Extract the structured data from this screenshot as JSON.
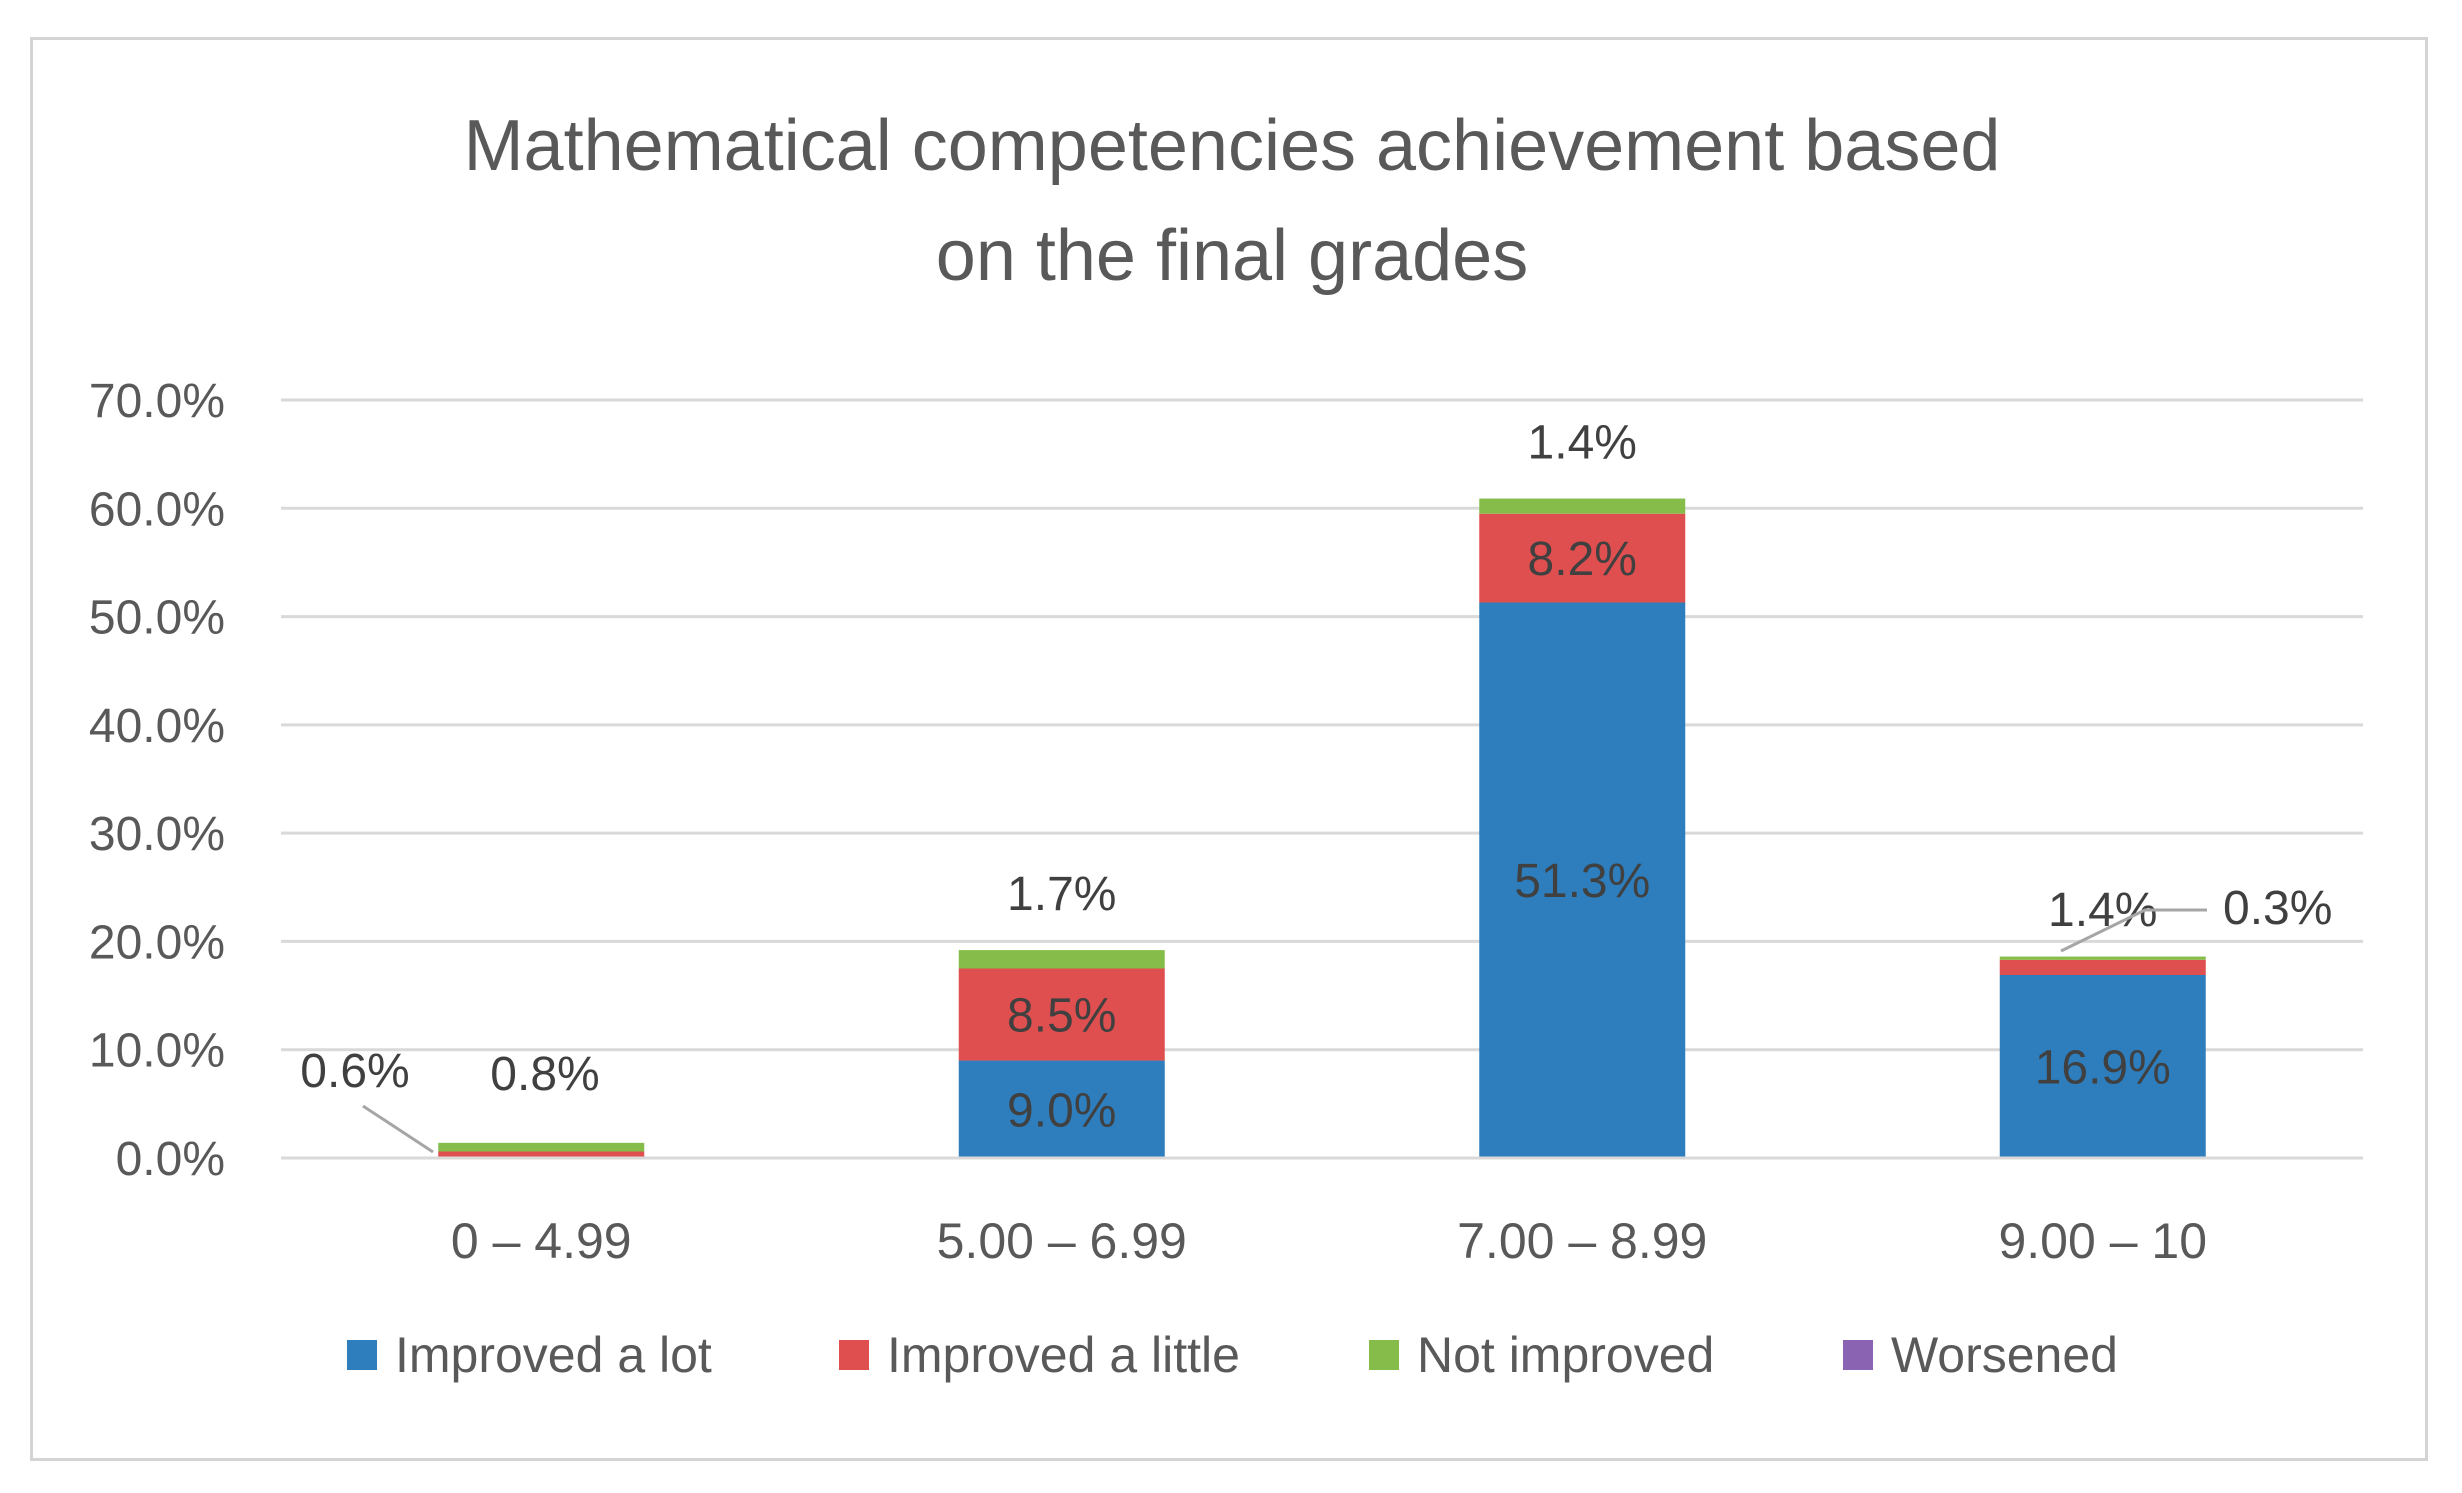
{
  "chart_data": {
    "type": "bar",
    "stacked": true,
    "title_lines": [
      "Mathematical competencies achievement based",
      "on the final grades"
    ],
    "categories": [
      "0 – 4.99",
      "5.00 – 6.99",
      "7.00 – 8.99",
      "9.00 – 10"
    ],
    "y_ticks": [
      "0.0%",
      "10.0%",
      "20.0%",
      "30.0%",
      "40.0%",
      "50.0%",
      "60.0%",
      "70.0%"
    ],
    "ylim": [
      0,
      70
    ],
    "grid": true,
    "legend_position": "bottom",
    "series": [
      {
        "name": "Improved a lot",
        "color": "#2e7ebd",
        "values": [
          0,
          9.0,
          51.3,
          16.9
        ],
        "labels": [
          "",
          "9.0%",
          "51.3%",
          "16.9%"
        ]
      },
      {
        "name": "Improved a little",
        "color": "#e04f4f",
        "values": [
          0.6,
          8.5,
          8.2,
          1.4
        ],
        "labels": [
          "0.6%",
          "8.5%",
          "8.2%",
          "1.4%"
        ]
      },
      {
        "name": "Not improved",
        "color": "#86bd4a",
        "values": [
          0.8,
          1.7,
          1.4,
          0.3
        ],
        "labels": [
          "0.8%",
          "1.7%",
          "1.4%",
          "0.3%"
        ]
      },
      {
        "name": "Worsened",
        "color": "#8a63b3",
        "values": [
          0,
          0,
          0,
          0
        ],
        "labels": [
          "",
          "",
          "",
          ""
        ]
      }
    ]
  }
}
